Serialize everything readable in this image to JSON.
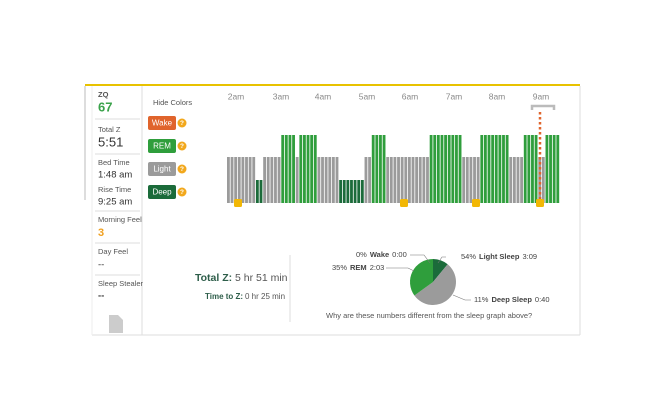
{
  "sidebar": {
    "zq_label": "ZQ",
    "zq_value": "67",
    "total_z_label": "Total Z",
    "total_z_value": "5:51",
    "bed_time_label": "Bed Time",
    "bed_time_value": "1:48 am",
    "rise_time_label": "Rise Time",
    "rise_time_value": "9:25 am",
    "morning_feel_label": "Morning Feel",
    "morning_feel_value": "3",
    "day_feel_label": "Day Feel",
    "day_feel_value": "--",
    "sleep_stealer_label": "Sleep Stealer",
    "sleep_stealer_value": "--"
  },
  "legend": {
    "title": "Hide Colors",
    "items": [
      {
        "label": "Wake",
        "color": "#e0642c"
      },
      {
        "label": "REM",
        "color": "#2f9e3c"
      },
      {
        "label": "Light",
        "color": "#9b9b9b"
      },
      {
        "label": "Deep",
        "color": "#1b6b3a"
      }
    ]
  },
  "hypnogram": {
    "time_labels": [
      "2am",
      "3am",
      "4am",
      "5am",
      "6am",
      "7am",
      "8am",
      "9am"
    ],
    "stages": [
      "Light",
      "Light",
      "Light",
      "Light",
      "Light",
      "Light",
      "Light",
      "Light",
      "Deep",
      "Deep",
      "Light",
      "Light",
      "Light",
      "Light",
      "Light",
      "REM",
      "REM",
      "REM",
      "REM",
      "Light",
      "REM",
      "REM",
      "REM",
      "REM",
      "REM",
      "Light",
      "Light",
      "Light",
      "Light",
      "Light",
      "Light",
      "Deep",
      "Deep",
      "Deep",
      "Deep",
      "Deep",
      "Deep",
      "Deep",
      "Light",
      "Light",
      "REM",
      "REM",
      "REM",
      "REM",
      "Light",
      "Light",
      "Light",
      "Light",
      "Light",
      "Light",
      "Light",
      "Light",
      "Light",
      "Light",
      "Light",
      "Light",
      "REM",
      "REM",
      "REM",
      "REM",
      "REM",
      "REM",
      "REM",
      "REM",
      "REM",
      "Light",
      "Light",
      "Light",
      "Light",
      "Light",
      "REM",
      "REM",
      "REM",
      "REM",
      "REM",
      "REM",
      "REM",
      "REM",
      "Light",
      "Light",
      "Light",
      "Light",
      "REM",
      "REM",
      "REM",
      "REM",
      "Light",
      "Light",
      "REM",
      "REM",
      "REM",
      "REM"
    ]
  },
  "summary": {
    "total_z_label": "Total Z:",
    "total_z_value": "5 hr 51 min",
    "time_to_z_label": "Time to Z:",
    "time_to_z_value": "0 hr 25 min"
  },
  "chart_data": {
    "type": "pie",
    "categories": [
      "Wake",
      "REM",
      "Light Sleep",
      "Deep Sleep"
    ],
    "values": [
      0,
      35,
      54,
      11
    ],
    "value_labels": [
      "0%",
      "35%",
      "54%",
      "11%"
    ],
    "times": [
      "0:00",
      "2:03",
      "3:09",
      "0:40"
    ],
    "colors": [
      "#e0642c",
      "#2f9e3c",
      "#9b9b9b",
      "#1b6b3a"
    ],
    "note": "Why are these numbers different from the sleep graph above?"
  }
}
